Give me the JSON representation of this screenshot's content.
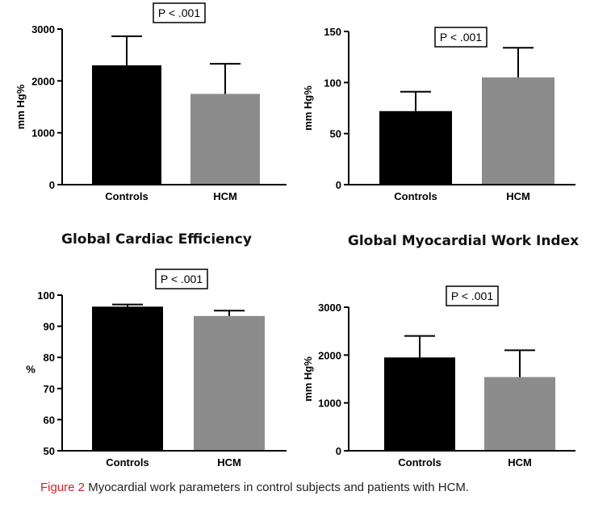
{
  "colors": {
    "controls": "#000000",
    "hcm": "#8c8c8c",
    "axis": "#000000",
    "caption_label": "#d0202a"
  },
  "chart_data": [
    {
      "type": "bar",
      "title": "",
      "ylabel": "mm Hg%",
      "categories": [
        "Controls",
        "HCM"
      ],
      "values": [
        2300,
        1750
      ],
      "errors": [
        2860,
        2330
      ],
      "ylim": [
        0,
        3000
      ],
      "yticks": [
        0,
        1000,
        2000,
        3000
      ],
      "annotation": "P < .001",
      "grid": false
    },
    {
      "type": "bar",
      "title": "",
      "ylabel": "mm Hg%",
      "categories": [
        "Controls",
        "HCM"
      ],
      "values": [
        72,
        105
      ],
      "errors": [
        91,
        134
      ],
      "ylim": [
        0,
        150
      ],
      "yticks": [
        0,
        50,
        100,
        150
      ],
      "annotation": "P < .001",
      "grid": false
    },
    {
      "type": "bar",
      "title": "Global Cardiac Efficiency",
      "ylabel": "%",
      "categories": [
        "Controls",
        "HCM"
      ],
      "values": [
        96.3,
        93.3
      ],
      "errors": [
        97.0,
        95.0
      ],
      "ylim": [
        50,
        100
      ],
      "yticks": [
        50,
        60,
        70,
        80,
        90,
        100
      ],
      "annotation": "P < .001",
      "grid": false
    },
    {
      "type": "bar",
      "title": "Global Myocardial Work Index",
      "ylabel": "mm Hg%",
      "categories": [
        "Controls",
        "HCM"
      ],
      "values": [
        1950,
        1540
      ],
      "errors": [
        2400,
        2100
      ],
      "ylim": [
        0,
        3000
      ],
      "yticks": [
        0,
        1000,
        2000,
        3000
      ],
      "annotation": "P < .001",
      "grid": false
    }
  ],
  "caption": {
    "label": "Figure 2",
    "text": "Myocardial work parameters in control subjects and patients with HCM."
  }
}
